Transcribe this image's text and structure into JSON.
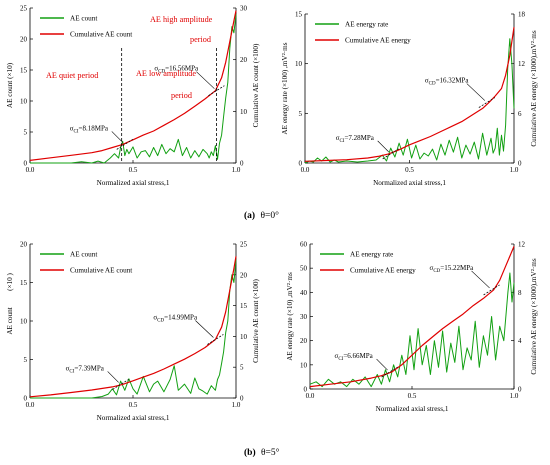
{
  "captions": [
    {
      "label": "(a)",
      "text": "θ=0°"
    },
    {
      "label": "(b)",
      "text": "θ=5°"
    }
  ],
  "colors": {
    "green": "#12a012",
    "red": "#e00000",
    "black": "#000000"
  },
  "chart_data": [
    {
      "type": "line",
      "id": "a-left",
      "xlabel": "Normalized axial stress,1",
      "ylabel": "AE count (×10)",
      "y2label": "Cumulative AE count (×100)",
      "xlim": [
        0,
        1.0
      ],
      "ylim": [
        0,
        25
      ],
      "y2lim": [
        0,
        30
      ],
      "xticks": [
        "0.0",
        "0.5",
        "1.0"
      ],
      "yticks": [
        "0",
        "5",
        "10",
        "15",
        "20",
        "25"
      ],
      "y2ticks": [
        "0",
        "10",
        "20",
        "30"
      ],
      "legend": [
        "AE count",
        "Cumulative AE count"
      ],
      "series": [
        {
          "name": "AE count",
          "axis": "left",
          "x": [
            0,
            0.05,
            0.1,
            0.15,
            0.2,
            0.25,
            0.3,
            0.33,
            0.36,
            0.39,
            0.41,
            0.43,
            0.44,
            0.45,
            0.46,
            0.47,
            0.48,
            0.5,
            0.52,
            0.54,
            0.56,
            0.58,
            0.6,
            0.62,
            0.64,
            0.66,
            0.68,
            0.7,
            0.72,
            0.74,
            0.76,
            0.78,
            0.8,
            0.82,
            0.84,
            0.86,
            0.87,
            0.88,
            0.89,
            0.9,
            0.91,
            0.92,
            0.93,
            0.94,
            0.95,
            0.96,
            0.97,
            0.98,
            0.99,
            1.0
          ],
          "y": [
            0,
            0,
            0,
            0,
            0,
            0.2,
            0,
            0.3,
            0,
            0.8,
            1.5,
            0.8,
            2.5,
            3.5,
            1.2,
            2.2,
            1.5,
            2.6,
            0.8,
            1.8,
            2.0,
            1.0,
            2.5,
            1.2,
            3.0,
            1.5,
            2.3,
            1.8,
            3.8,
            1.2,
            2.5,
            0.8,
            2.0,
            1.0,
            2.2,
            1.5,
            0.8,
            1.8,
            1.2,
            2.8,
            0.6,
            3.2,
            4.5,
            7.5,
            10.5,
            13.0,
            18.5,
            22.0,
            21.0,
            24.0
          ]
        },
        {
          "name": "Cumulative AE count",
          "axis": "right",
          "x": [
            0,
            0.1,
            0.2,
            0.3,
            0.35,
            0.4,
            0.45,
            0.5,
            0.55,
            0.6,
            0.65,
            0.7,
            0.75,
            0.8,
            0.85,
            0.9,
            0.93,
            0.95,
            0.97,
            0.99,
            1.0
          ],
          "y": [
            0.5,
            1.0,
            1.5,
            2.0,
            2.4,
            3.0,
            3.6,
            4.5,
            5.4,
            6.2,
            7.3,
            8.4,
            9.6,
            11.0,
            12.4,
            14.0,
            16.5,
            19.5,
            23.5,
            27.5,
            29.5
          ]
        }
      ],
      "annotations": [
        {
          "text": "σCI=8.18MPa",
          "x": 0.46,
          "y": 3.0
        },
        {
          "text": "σCD=16.56MPa",
          "x": 0.905,
          "y": 14.0
        }
      ],
      "region_lines": [
        0.445,
        0.905
      ],
      "region_labels": [
        "AE quiet period",
        "AE low amplitude",
        "period",
        "AE high amplitude",
        "period"
      ]
    },
    {
      "type": "line",
      "id": "a-right",
      "xlabel": "Normalized axial stress,1",
      "ylabel": "AE energy rate (×100) ,mV²·ms",
      "y2label": "Cumulative AE energy (×1000),mV²·ms",
      "xlim": [
        0,
        1.0
      ],
      "ylim": [
        0,
        15
      ],
      "y2lim": [
        0,
        18
      ],
      "xticks": [
        "0.0",
        "0.5",
        "1.0"
      ],
      "yticks": [
        "0",
        "5",
        "10",
        "15"
      ],
      "y2ticks": [
        "0",
        "6",
        "12",
        "18"
      ],
      "legend": [
        "AE energy rate",
        "Cumulative AE energy"
      ],
      "series": [
        {
          "name": "AE energy rate",
          "axis": "left",
          "x": [
            0,
            0.02,
            0.04,
            0.06,
            0.08,
            0.1,
            0.12,
            0.14,
            0.16,
            0.2,
            0.25,
            0.3,
            0.34,
            0.37,
            0.39,
            0.41,
            0.43,
            0.45,
            0.47,
            0.49,
            0.51,
            0.53,
            0.55,
            0.57,
            0.59,
            0.61,
            0.63,
            0.65,
            0.67,
            0.69,
            0.71,
            0.73,
            0.75,
            0.77,
            0.79,
            0.81,
            0.83,
            0.85,
            0.87,
            0.89,
            0.9,
            0.91,
            0.92,
            0.93,
            0.94,
            0.95,
            0.96,
            0.97,
            0.98,
            0.99,
            1.0
          ],
          "y": [
            0,
            0.2,
            0.1,
            0.5,
            0.2,
            0.6,
            0.1,
            0.3,
            0.1,
            0.2,
            0.1,
            0.2,
            0.3,
            0.8,
            0.2,
            1.5,
            0.6,
            2.0,
            0.8,
            2.4,
            0.5,
            1.8,
            0.4,
            1.0,
            0.7,
            1.4,
            0.3,
            1.9,
            0.8,
            2.3,
            1.1,
            2.6,
            0.5,
            1.8,
            0.9,
            2.1,
            0.4,
            3.0,
            0.8,
            2.5,
            1.0,
            1.5,
            3.5,
            0.8,
            2.8,
            1.2,
            3.8,
            9.5,
            12.5,
            10.0,
            5.5
          ]
        },
        {
          "name": "Cumulative AE energy",
          "axis": "right",
          "x": [
            0,
            0.1,
            0.2,
            0.3,
            0.35,
            0.4,
            0.45,
            0.5,
            0.55,
            0.6,
            0.65,
            0.7,
            0.75,
            0.8,
            0.85,
            0.88,
            0.91,
            0.94,
            0.96,
            0.98,
            1.0
          ],
          "y": [
            0.2,
            0.3,
            0.4,
            0.6,
            0.8,
            1.1,
            1.6,
            2.2,
            2.7,
            3.2,
            3.8,
            4.4,
            5.0,
            5.8,
            6.6,
            7.3,
            8.1,
            9.0,
            10.6,
            13.0,
            16.4
          ]
        }
      ],
      "annotations": [
        {
          "text": "σCI=7.28MPa",
          "x": 0.41,
          "y": 1.5
        },
        {
          "text": "σCD=16.32MPa",
          "x": 0.87,
          "y": 7.3
        }
      ]
    },
    {
      "type": "line",
      "id": "b-left",
      "xlabel": "Normalized axial stress,1",
      "ylabel": "AE count",
      "ylabel_extra": "(×10 )",
      "y2label": "Cumulative AE count (×100)",
      "xlim": [
        0,
        1.0
      ],
      "ylim": [
        0,
        20
      ],
      "y2lim": [
        0,
        25
      ],
      "xticks": [
        "0.0",
        "0.5",
        "1.0"
      ],
      "yticks": [
        "0",
        "5",
        "10",
        "15",
        "20"
      ],
      "y2ticks": [
        "0",
        "5",
        "10",
        "15",
        "20",
        "25"
      ],
      "legend": [
        "AE count",
        "Cumulative AE count"
      ],
      "series": [
        {
          "name": "AE count",
          "axis": "left",
          "x": [
            0,
            0.1,
            0.2,
            0.3,
            0.35,
            0.38,
            0.4,
            0.42,
            0.44,
            0.46,
            0.48,
            0.5,
            0.52,
            0.55,
            0.58,
            0.6,
            0.62,
            0.65,
            0.68,
            0.7,
            0.72,
            0.75,
            0.78,
            0.8,
            0.82,
            0.84,
            0.86,
            0.88,
            0.9,
            0.91,
            0.92,
            0.93,
            0.94,
            0.95,
            0.96,
            0.97,
            0.98,
            0.99,
            1.0
          ],
          "y": [
            0,
            0,
            0,
            0,
            0.2,
            0.5,
            1.2,
            0.4,
            2.2,
            1.0,
            2.5,
            1.2,
            0.5,
            2.8,
            0.8,
            1.8,
            2.2,
            0.8,
            2.4,
            4.2,
            1.0,
            1.8,
            0.6,
            2.6,
            1.2,
            0.9,
            0.5,
            1.6,
            1.0,
            2.4,
            3.0,
            4.5,
            6.0,
            8.5,
            10.0,
            14.0,
            16.0,
            15.0,
            18.0
          ]
        },
        {
          "name": "Cumulative AE count",
          "axis": "right",
          "x": [
            0,
            0.1,
            0.2,
            0.3,
            0.4,
            0.45,
            0.5,
            0.55,
            0.6,
            0.65,
            0.7,
            0.75,
            0.8,
            0.85,
            0.9,
            0.93,
            0.95,
            0.97,
            0.99,
            1.0
          ],
          "y": [
            0.2,
            0.5,
            0.9,
            1.3,
            1.8,
            2.2,
            2.8,
            3.4,
            4.0,
            4.7,
            5.5,
            6.3,
            7.2,
            8.2,
            9.5,
            11.5,
            14.0,
            17.5,
            21.0,
            23.0
          ]
        }
      ],
      "annotations": [
        {
          "text": "σCI=7.39MPa",
          "x": 0.44,
          "y": 2.2
        },
        {
          "text": "σCD=14.99MPa",
          "x": 0.9,
          "y": 9.5
        }
      ]
    },
    {
      "type": "line",
      "id": "b-right",
      "xlabel": "Normalized axial stress,1",
      "ylabel": "AE energy rate (×10) ,mV²·ms",
      "y2label": "Cumulative AE energy (×1000),mV²·ms",
      "xlim": [
        0,
        1.0
      ],
      "ylim": [
        0,
        60
      ],
      "y2lim": [
        0,
        12
      ],
      "xticks": [
        "0.0",
        "0.5",
        "1.0"
      ],
      "yticks": [
        "0",
        "10",
        "20",
        "30",
        "40",
        "50",
        "60"
      ],
      "y2ticks": [
        "0",
        "4",
        "8",
        "12"
      ],
      "legend": [
        "AE energy rate",
        "Cumulative AE energy"
      ],
      "series": [
        {
          "name": "AE energy rate",
          "axis": "left",
          "x": [
            0,
            0.03,
            0.06,
            0.09,
            0.12,
            0.15,
            0.18,
            0.21,
            0.24,
            0.27,
            0.3,
            0.33,
            0.35,
            0.37,
            0.39,
            0.41,
            0.43,
            0.45,
            0.47,
            0.49,
            0.51,
            0.53,
            0.55,
            0.57,
            0.59,
            0.61,
            0.63,
            0.65,
            0.67,
            0.69,
            0.71,
            0.73,
            0.75,
            0.77,
            0.79,
            0.81,
            0.83,
            0.85,
            0.87,
            0.89,
            0.91,
            0.93,
            0.95,
            0.97,
            0.98,
            0.99,
            1.0
          ],
          "y": [
            2,
            3,
            1,
            4,
            2,
            3,
            1,
            4,
            2,
            5,
            1,
            6,
            2,
            8,
            3,
            10,
            5,
            14,
            6,
            22,
            8,
            25,
            10,
            18,
            6,
            20,
            9,
            24,
            7,
            19,
            11,
            26,
            8,
            17,
            12,
            28,
            9,
            22,
            14,
            30,
            12,
            26,
            20,
            40,
            48,
            36,
            44
          ]
        },
        {
          "name": "Cumulative AE energy",
          "axis": "right",
          "x": [
            0,
            0.1,
            0.2,
            0.3,
            0.35,
            0.4,
            0.45,
            0.5,
            0.55,
            0.6,
            0.65,
            0.7,
            0.75,
            0.8,
            0.85,
            0.9,
            0.93,
            0.96,
            0.98,
            1.0
          ],
          "y": [
            0.2,
            0.4,
            0.6,
            0.9,
            1.1,
            1.4,
            2.0,
            2.8,
            3.6,
            4.3,
            5.0,
            5.6,
            6.2,
            6.9,
            7.5,
            8.2,
            9.0,
            10.2,
            11.0,
            11.8
          ]
        }
      ],
      "annotations": [
        {
          "text": "σCI=6.66MPa",
          "x": 0.39,
          "y": 3.0
        },
        {
          "text": "σCD=15.22MPa",
          "x": 0.89,
          "y": 40.0
        }
      ]
    }
  ]
}
